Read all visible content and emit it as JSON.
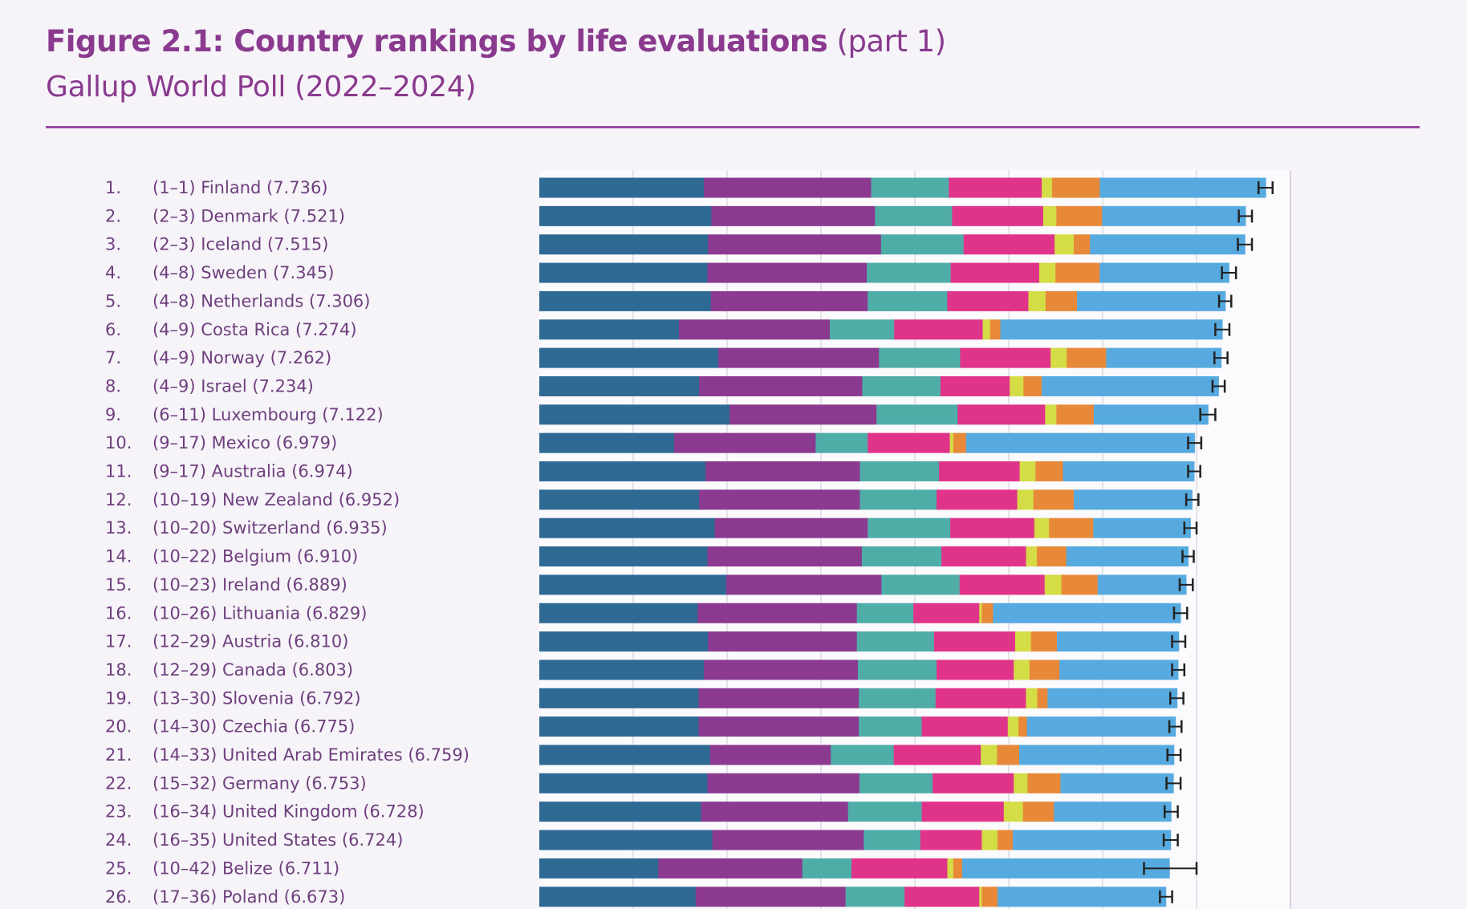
{
  "header": {
    "title_bold": "Figure 2.1: Country rankings by life evaluations",
    "title_part": "(part 1)",
    "subtitle": "Gallup World Poll (2022–2024)"
  },
  "chart_data": {
    "type": "bar",
    "orientation": "horizontal",
    "stacked": true,
    "xlim": [
      0,
      8
    ],
    "grid": true,
    "legend": "none",
    "segment_colors": [
      "#2e6a94",
      "#8b3a8f",
      "#4fada8",
      "#e0338a",
      "#d4dc46",
      "#e8893a",
      "#56aadf"
    ],
    "error_bar_color": "#222222",
    "rows": [
      {
        "rank": "1.",
        "range": "(1–1)",
        "country": "Finland",
        "score": "7.736",
        "values": [
          1.754,
          1.78,
          0.827,
          0.99,
          0.11,
          0.508,
          1.767
        ],
        "ci": [
          7.66,
          7.81
        ]
      },
      {
        "rank": "2.",
        "range": "(2–3)",
        "country": "Denmark",
        "score": "7.521",
        "values": [
          1.832,
          1.743,
          0.822,
          0.969,
          0.141,
          0.487,
          1.527
        ],
        "ci": [
          7.45,
          7.59
        ]
      },
      {
        "rank": "3.",
        "range": "(2–3)",
        "country": "Iceland",
        "score": "7.515",
        "values": [
          1.796,
          1.843,
          0.88,
          0.969,
          0.204,
          0.173,
          1.65
        ],
        "ci": [
          7.44,
          7.59
        ]
      },
      {
        "rank": "4.",
        "range": "(4–8)",
        "country": "Sweden",
        "score": "7.345",
        "values": [
          1.791,
          1.696,
          0.895,
          0.942,
          0.173,
          0.471,
          1.377
        ],
        "ci": [
          7.27,
          7.42
        ]
      },
      {
        "rank": "5.",
        "range": "(4–8)",
        "country": "Netherlands",
        "score": "7.306",
        "values": [
          1.827,
          1.67,
          0.848,
          0.864,
          0.183,
          0.335,
          1.579
        ],
        "ci": [
          7.24,
          7.37
        ]
      },
      {
        "rank": "6.",
        "range": "(4–9)",
        "country": "Costa Rica",
        "score": "7.274",
        "values": [
          1.487,
          1.607,
          0.686,
          0.942,
          0.079,
          0.11,
          2.363
        ],
        "ci": [
          7.2,
          7.35
        ]
      },
      {
        "rank": "7.",
        "range": "(4–9)",
        "country": "Norway",
        "score": "7.262",
        "values": [
          1.906,
          1.712,
          0.864,
          0.963,
          0.173,
          0.419,
          1.225
        ],
        "ci": [
          7.19,
          7.33
        ]
      },
      {
        "rank": "8.",
        "range": "(4–9)",
        "country": "Israel",
        "score": "7.234",
        "values": [
          1.702,
          1.738,
          0.832,
          0.738,
          0.147,
          0.194,
          1.883
        ],
        "ci": [
          7.17,
          7.3
        ]
      },
      {
        "rank": "9.",
        "range": "(6–11)",
        "country": "Luxembourg",
        "score": "7.122",
        "values": [
          2.026,
          1.565,
          0.864,
          0.932,
          0.12,
          0.398,
          1.217
        ],
        "ci": [
          7.04,
          7.2
        ]
      },
      {
        "rank": "10.",
        "range": "(9–17)",
        "country": "Mexico",
        "score": "6.979",
        "values": [
          1.435,
          1.508,
          0.555,
          0.874,
          0.037,
          0.136,
          2.434
        ],
        "ci": [
          6.91,
          7.05
        ]
      },
      {
        "rank": "11.",
        "range": "(9–17)",
        "country": "Australia",
        "score": "6.974",
        "values": [
          1.77,
          1.644,
          0.843,
          0.859,
          0.168,
          0.293,
          1.397
        ],
        "ci": [
          6.91,
          7.04
        ]
      },
      {
        "rank": "12.",
        "range": "(10–19)",
        "country": "New Zealand",
        "score": "6.952",
        "values": [
          1.702,
          1.712,
          0.817,
          0.859,
          0.173,
          0.429,
          1.26
        ],
        "ci": [
          6.89,
          7.02
        ]
      },
      {
        "rank": "13.",
        "range": "(10–20)",
        "country": "Switzerland",
        "score": "6.935",
        "values": [
          1.869,
          1.628,
          0.88,
          0.895,
          0.157,
          0.471,
          1.035
        ],
        "ci": [
          6.87,
          7.0
        ]
      },
      {
        "rank": "14.",
        "range": "(10–22)",
        "country": "Belgium",
        "score": "6.910",
        "values": [
          1.791,
          1.644,
          0.848,
          0.901,
          0.115,
          0.314,
          1.297
        ],
        "ci": [
          6.85,
          6.97
        ]
      },
      {
        "rank": "15.",
        "range": "(10–23)",
        "country": "Ireland",
        "score": "6.889",
        "values": [
          1.99,
          1.654,
          0.832,
          0.906,
          0.178,
          0.387,
          0.942
        ],
        "ci": [
          6.82,
          6.96
        ]
      },
      {
        "rank": "16.",
        "range": "(10–26)",
        "country": "Lithuania",
        "score": "6.829",
        "values": [
          1.686,
          1.696,
          0.602,
          0.702,
          0.026,
          0.12,
          1.997
        ],
        "ci": [
          6.76,
          6.9
        ]
      },
      {
        "rank": "17.",
        "range": "(12–29)",
        "country": "Austria",
        "score": "6.810",
        "values": [
          1.796,
          1.586,
          0.822,
          0.864,
          0.168,
          0.277,
          1.297
        ],
        "ci": [
          6.74,
          6.88
        ]
      },
      {
        "rank": "18.",
        "range": "(12–29)",
        "country": "Canada",
        "score": "6.803",
        "values": [
          1.754,
          1.639,
          0.838,
          0.822,
          0.168,
          0.319,
          1.263
        ],
        "ci": [
          6.74,
          6.87
        ]
      },
      {
        "rank": "19.",
        "range": "(13–30)",
        "country": "Slovenia",
        "score": "6.792",
        "values": [
          1.696,
          1.707,
          0.817,
          0.963,
          0.12,
          0.11,
          1.379
        ],
        "ci": [
          6.72,
          6.86
        ]
      },
      {
        "rank": "20.",
        "range": "(14–30)",
        "country": "Czechia",
        "score": "6.775",
        "values": [
          1.696,
          1.707,
          0.67,
          0.916,
          0.115,
          0.089,
          1.582
        ],
        "ci": [
          6.71,
          6.84
        ]
      },
      {
        "rank": "21.",
        "range": "(14–33)",
        "country": "United Arab Emirates",
        "score": "6.759",
        "values": [
          1.817,
          1.288,
          0.67,
          0.927,
          0.173,
          0.236,
          1.648
        ],
        "ci": [
          6.69,
          6.83
        ]
      },
      {
        "rank": "22.",
        "range": "(15–32)",
        "country": "Germany",
        "score": "6.753",
        "values": [
          1.791,
          1.618,
          0.78,
          0.864,
          0.147,
          0.351,
          1.202
        ],
        "ci": [
          6.68,
          6.83
        ]
      },
      {
        "rank": "23.",
        "range": "(16–34)",
        "country": "United Kingdom",
        "score": "6.728",
        "values": [
          1.723,
          1.565,
          0.785,
          0.874,
          0.204,
          0.33,
          1.247
        ],
        "ci": [
          6.66,
          6.8
        ]
      },
      {
        "rank": "24.",
        "range": "(16–35)",
        "country": "United States",
        "score": "6.724",
        "values": [
          1.843,
          1.613,
          0.602,
          0.654,
          0.168,
          0.162,
          1.682
        ],
        "ci": [
          6.65,
          6.8
        ]
      },
      {
        "rank": "25.",
        "range": "(10–42)",
        "country": "Belize",
        "score": "6.711",
        "values": [
          1.267,
          1.534,
          0.524,
          1.021,
          0.063,
          0.094,
          2.208
        ],
        "ci": [
          6.44,
          7.0
        ]
      },
      {
        "rank": "26.",
        "range": "(17–36)",
        "country": "Poland",
        "score": "6.673",
        "values": [
          1.665,
          1.597,
          0.628,
          0.796,
          0.026,
          0.168,
          1.793
        ],
        "ci": [
          6.61,
          6.74
        ]
      }
    ]
  }
}
